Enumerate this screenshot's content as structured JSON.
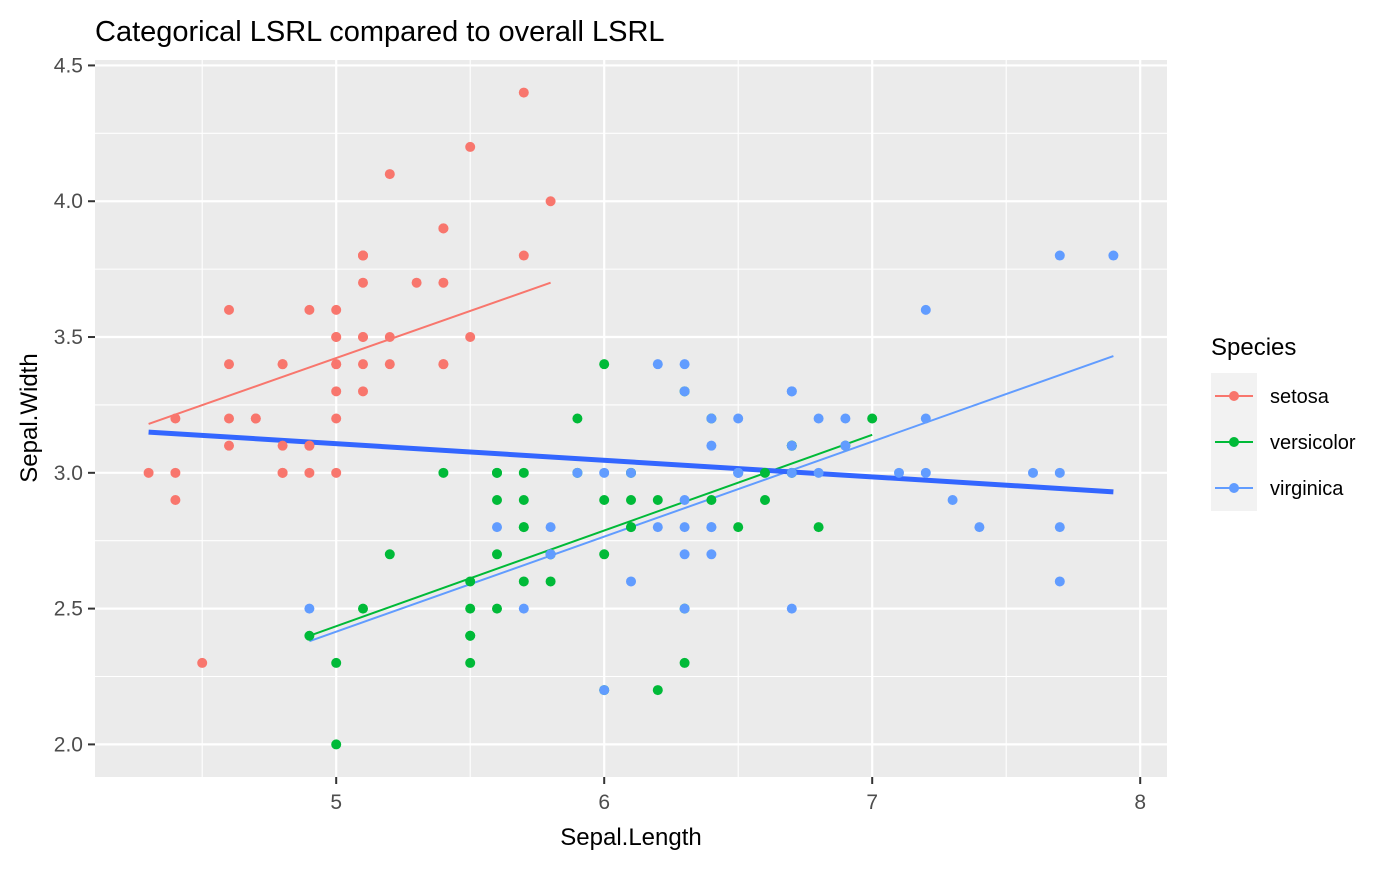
{
  "chart_data": {
    "type": "scatter",
    "title": "Categorical LSRL compared to overall LSRL",
    "xlabel": "Sepal.Length",
    "ylabel": "Sepal.Width",
    "xlim": [
      4.1,
      8.1
    ],
    "ylim": [
      1.88,
      4.52
    ],
    "x_ticks": [
      5,
      6,
      7,
      8
    ],
    "x_tick_labels": [
      "5",
      "6",
      "7",
      "8"
    ],
    "y_ticks": [
      2.0,
      2.5,
      3.0,
      3.5,
      4.0,
      4.5
    ],
    "y_tick_labels": [
      "2.0",
      "2.5",
      "3.0",
      "3.5",
      "4.0",
      "4.5"
    ],
    "grid": true,
    "legend": {
      "title": "Species",
      "position": "right"
    },
    "colors": {
      "setosa": "#F8766D",
      "versicolor": "#00BA38",
      "virginica": "#619CFF",
      "overall": "#3366FF",
      "panel": "#EBEBEB",
      "grid": "#FFFFFF"
    },
    "series": [
      {
        "name": "setosa",
        "color": "#F8766D",
        "points": [
          [
            5.1,
            3.5
          ],
          [
            4.9,
            3.0
          ],
          [
            4.7,
            3.2
          ],
          [
            4.6,
            3.1
          ],
          [
            5.0,
            3.6
          ],
          [
            5.4,
            3.9
          ],
          [
            4.6,
            3.4
          ],
          [
            5.0,
            3.4
          ],
          [
            4.4,
            2.9
          ],
          [
            4.9,
            3.1
          ],
          [
            5.4,
            3.7
          ],
          [
            4.8,
            3.4
          ],
          [
            4.8,
            3.0
          ],
          [
            4.3,
            3.0
          ],
          [
            5.8,
            4.0
          ],
          [
            5.7,
            4.4
          ],
          [
            5.4,
            3.9
          ],
          [
            5.1,
            3.5
          ],
          [
            5.7,
            3.8
          ],
          [
            5.1,
            3.8
          ],
          [
            5.4,
            3.4
          ],
          [
            5.1,
            3.7
          ],
          [
            4.6,
            3.6
          ],
          [
            5.1,
            3.3
          ],
          [
            4.8,
            3.4
          ],
          [
            5.0,
            3.0
          ],
          [
            5.0,
            3.4
          ],
          [
            5.2,
            3.5
          ],
          [
            5.2,
            3.4
          ],
          [
            4.7,
            3.2
          ],
          [
            4.8,
            3.1
          ],
          [
            5.4,
            3.4
          ],
          [
            5.2,
            4.1
          ],
          [
            5.5,
            4.2
          ],
          [
            4.9,
            3.1
          ],
          [
            5.0,
            3.2
          ],
          [
            5.5,
            3.5
          ],
          [
            4.9,
            3.6
          ],
          [
            4.4,
            3.0
          ],
          [
            5.1,
            3.4
          ],
          [
            5.0,
            3.5
          ],
          [
            4.5,
            2.3
          ],
          [
            4.4,
            3.2
          ],
          [
            5.0,
            3.5
          ],
          [
            5.1,
            3.8
          ],
          [
            4.8,
            3.0
          ],
          [
            5.1,
            3.8
          ],
          [
            4.6,
            3.2
          ],
          [
            5.3,
            3.7
          ],
          [
            5.0,
            3.3
          ]
        ],
        "fit": [
          [
            4.3,
            3.18
          ],
          [
            5.8,
            3.7
          ]
        ]
      },
      {
        "name": "versicolor",
        "color": "#00BA38",
        "points": [
          [
            7.0,
            3.2
          ],
          [
            6.4,
            3.2
          ],
          [
            6.9,
            3.1
          ],
          [
            5.5,
            2.3
          ],
          [
            6.5,
            2.8
          ],
          [
            5.7,
            2.8
          ],
          [
            6.3,
            3.3
          ],
          [
            4.9,
            2.4
          ],
          [
            6.6,
            2.9
          ],
          [
            5.2,
            2.7
          ],
          [
            5.0,
            2.0
          ],
          [
            5.9,
            3.0
          ],
          [
            6.0,
            2.2
          ],
          [
            6.1,
            2.9
          ],
          [
            5.6,
            2.9
          ],
          [
            6.7,
            3.1
          ],
          [
            5.6,
            3.0
          ],
          [
            5.8,
            2.7
          ],
          [
            6.2,
            2.2
          ],
          [
            5.6,
            2.5
          ],
          [
            5.9,
            3.2
          ],
          [
            6.1,
            2.8
          ],
          [
            6.3,
            2.5
          ],
          [
            6.1,
            2.8
          ],
          [
            6.4,
            2.9
          ],
          [
            6.6,
            3.0
          ],
          [
            6.8,
            2.8
          ],
          [
            6.7,
            3.0
          ],
          [
            6.0,
            2.9
          ],
          [
            5.7,
            2.6
          ],
          [
            5.5,
            2.4
          ],
          [
            5.5,
            2.4
          ],
          [
            5.8,
            2.7
          ],
          [
            6.0,
            2.7
          ],
          [
            5.4,
            3.0
          ],
          [
            6.0,
            3.4
          ],
          [
            6.7,
            3.1
          ],
          [
            6.3,
            2.3
          ],
          [
            5.6,
            3.0
          ],
          [
            5.5,
            2.5
          ],
          [
            5.5,
            2.6
          ],
          [
            6.1,
            3.0
          ],
          [
            5.8,
            2.6
          ],
          [
            5.0,
            2.3
          ],
          [
            5.6,
            2.7
          ],
          [
            5.7,
            3.0
          ],
          [
            5.7,
            2.9
          ],
          [
            6.2,
            2.9
          ],
          [
            5.1,
            2.5
          ],
          [
            5.7,
            2.8
          ]
        ],
        "fit": [
          [
            4.9,
            2.4
          ],
          [
            7.0,
            3.14
          ]
        ]
      },
      {
        "name": "virginica",
        "color": "#619CFF",
        "points": [
          [
            6.3,
            3.3
          ],
          [
            5.8,
            2.7
          ],
          [
            7.1,
            3.0
          ],
          [
            6.3,
            2.9
          ],
          [
            6.5,
            3.0
          ],
          [
            7.6,
            3.0
          ],
          [
            4.9,
            2.5
          ],
          [
            7.3,
            2.9
          ],
          [
            6.7,
            2.5
          ],
          [
            7.2,
            3.6
          ],
          [
            6.5,
            3.2
          ],
          [
            6.4,
            2.7
          ],
          [
            6.8,
            3.0
          ],
          [
            5.7,
            2.5
          ],
          [
            5.8,
            2.8
          ],
          [
            6.4,
            3.2
          ],
          [
            6.5,
            3.0
          ],
          [
            7.7,
            3.8
          ],
          [
            7.7,
            2.6
          ],
          [
            6.0,
            2.2
          ],
          [
            6.9,
            3.2
          ],
          [
            5.6,
            2.8
          ],
          [
            7.7,
            2.8
          ],
          [
            6.3,
            2.7
          ],
          [
            6.7,
            3.3
          ],
          [
            7.2,
            3.2
          ],
          [
            6.2,
            2.8
          ],
          [
            6.1,
            3.0
          ],
          [
            6.4,
            2.8
          ],
          [
            7.2,
            3.0
          ],
          [
            7.4,
            2.8
          ],
          [
            7.9,
            3.8
          ],
          [
            6.4,
            2.8
          ],
          [
            6.3,
            2.8
          ],
          [
            6.1,
            2.6
          ],
          [
            7.7,
            3.0
          ],
          [
            6.3,
            3.4
          ],
          [
            6.4,
            3.1
          ],
          [
            6.0,
            3.0
          ],
          [
            6.9,
            3.1
          ],
          [
            6.7,
            3.1
          ],
          [
            6.9,
            3.1
          ],
          [
            5.8,
            2.7
          ],
          [
            6.8,
            3.2
          ],
          [
            6.7,
            3.3
          ],
          [
            6.7,
            3.0
          ],
          [
            6.3,
            2.5
          ],
          [
            6.5,
            3.0
          ],
          [
            6.2,
            3.4
          ],
          [
            5.9,
            3.0
          ]
        ],
        "fit": [
          [
            4.9,
            2.38
          ],
          [
            7.9,
            3.43
          ]
        ]
      }
    ],
    "overall_fit": {
      "color": "#3366FF",
      "line": [
        [
          4.3,
          3.15
        ],
        [
          7.9,
          2.93
        ]
      ]
    }
  }
}
